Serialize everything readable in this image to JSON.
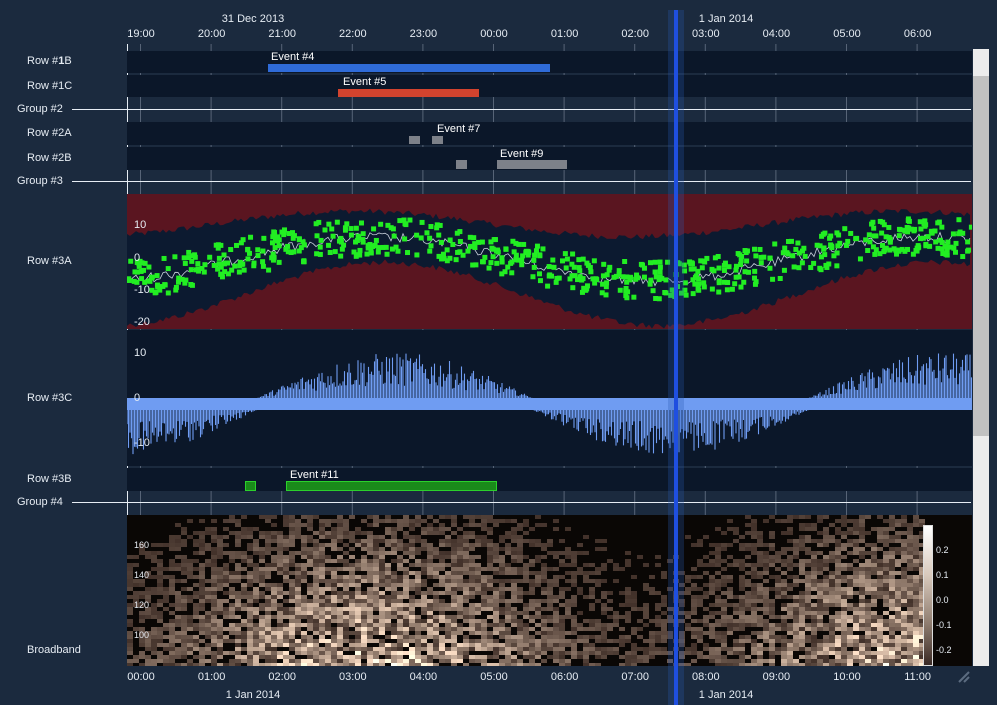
{
  "top_axis": {
    "dates": [
      "31 Dec 2013",
      "1 Jan 2014"
    ],
    "ticks": [
      "19:00",
      "20:00",
      "21:00",
      "22:00",
      "23:00",
      "00:00",
      "01:00",
      "02:00",
      "03:00",
      "04:00",
      "05:00",
      "06:00"
    ]
  },
  "bottom_axis": {
    "dates": [
      "1 Jan 2014",
      "1 Jan 2014"
    ],
    "ticks": [
      "00:00",
      "01:00",
      "02:00",
      "03:00",
      "04:00",
      "05:00",
      "06:00",
      "07:00",
      "08:00",
      "09:00",
      "10:00",
      "11:00"
    ]
  },
  "rows": {
    "r1b": "Row #1B",
    "r1c": "Row #1C",
    "g2": "Group #2",
    "r2a": "Row #2A",
    "r2b": "Row #2B",
    "g3": "Group #3",
    "r3a": "Row #3A",
    "r3c": "Row #3C",
    "r3b": "Row #3B",
    "g4": "Group #4",
    "broadband": "Broadband"
  },
  "events": {
    "e4": "Event #4",
    "e5": "Event #5",
    "e7": "Event #7",
    "e9": "Event #9",
    "e11": "Event #11"
  },
  "y_axes": {
    "r3a": [
      "10",
      "0",
      "-10",
      "-20"
    ],
    "r3c": [
      "10",
      "0",
      "-10"
    ],
    "broadband": [
      "160",
      "140",
      "120",
      "100"
    ],
    "colorbar": [
      "0.2",
      "0.1",
      "0.0",
      "-0.1",
      "-0.2"
    ]
  },
  "colors": {
    "background": "#1b2a3e",
    "track": "#0b1729",
    "event4": "#2f6bd8",
    "event5": "#d2432e",
    "event11": "#2bd12b",
    "scatter": "#22ee22",
    "band_red": "#5a1520",
    "bar_blue": "#6f9cf2",
    "cursor": "#1f4fe0"
  }
}
